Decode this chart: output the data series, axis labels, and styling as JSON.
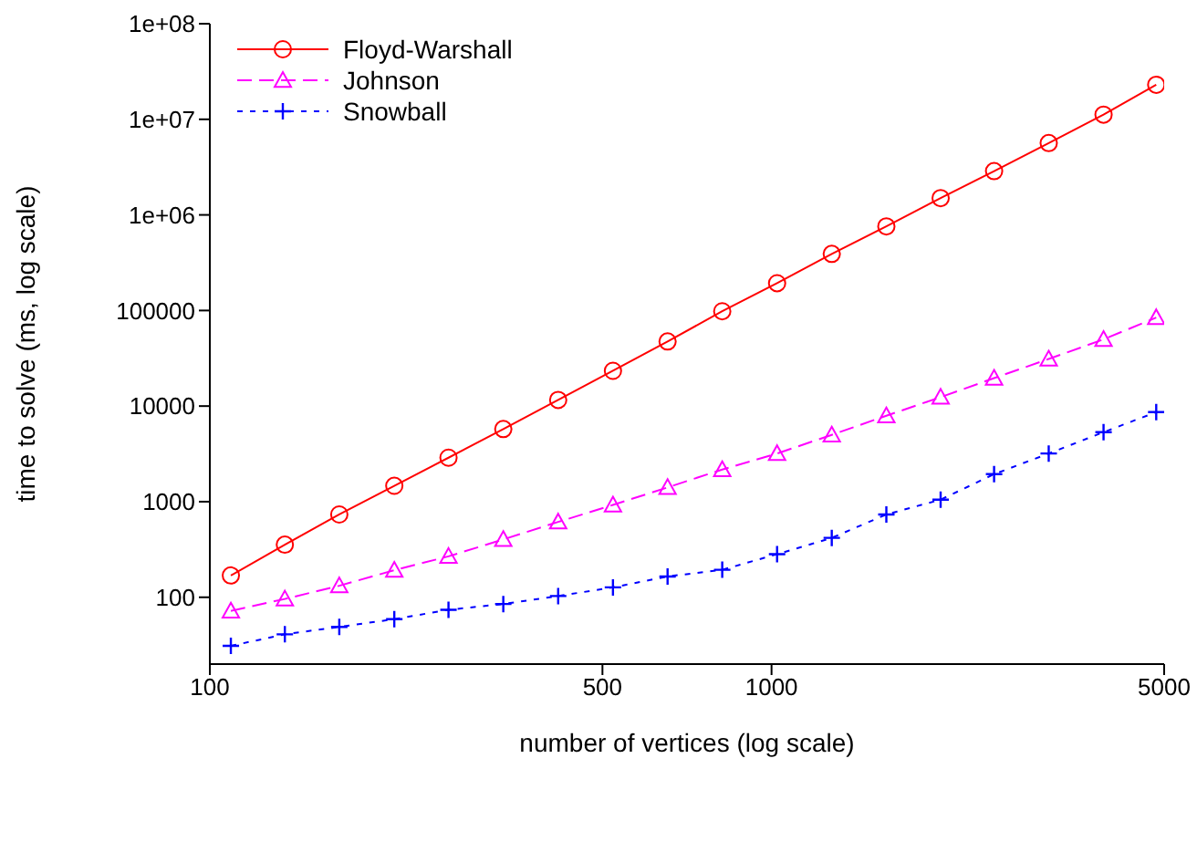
{
  "chart_data": {
    "type": "line",
    "xlabel": "number of vertices (log scale)",
    "ylabel": "time to solve (ms, log scale)",
    "log": "xy",
    "grid": false,
    "legend": "top left",
    "xlim": [
      100,
      5000
    ],
    "xticks": [
      100,
      500,
      1000,
      5000
    ],
    "ylim": [
      20,
      100000000
    ],
    "yticks": [
      100,
      1000,
      10000,
      100000,
      {
        "value": 1000000,
        "label": "1e+06"
      },
      {
        "value": 10000000,
        "label": "1e+07"
      },
      {
        "value": 100000000,
        "label": "1e+08"
      }
    ],
    "x": [
      109,
      136,
      170,
      213,
      266,
      333,
      417,
      522,
      653,
      817,
      1023,
      1280,
      1601,
      2000,
      2490,
      3115,
      3900,
      4840
    ],
    "series": [
      {
        "name": "Floyd-Warshall",
        "color": "#ff0000",
        "marker": "circle",
        "line_style": "solid",
        "values": [
          169,
          355,
          735,
          1466,
          2884,
          5754,
          11600,
          23400,
          47400,
          98200,
          193000,
          391000,
          759000,
          1500000,
          2870000,
          5640000,
          11200000,
          23000000
        ]
      },
      {
        "name": "Johnson",
        "color": "#ff00ff",
        "marker": "triangle",
        "line_style": "dashed",
        "values": [
          72,
          96,
          132,
          192,
          268,
          403,
          614,
          925,
          1410,
          2170,
          3190,
          5000,
          7930,
          12400,
          19600,
          31100,
          49900,
          84300
        ]
      },
      {
        "name": "Snowball",
        "color": "#0000ff",
        "marker": "cross",
        "line_style": "dotted",
        "values": [
          31,
          41,
          49,
          59,
          74,
          85,
          103,
          127,
          165,
          194,
          282,
          418,
          735,
          1050,
          1940,
          3190,
          5330,
          8650
        ]
      }
    ]
  }
}
